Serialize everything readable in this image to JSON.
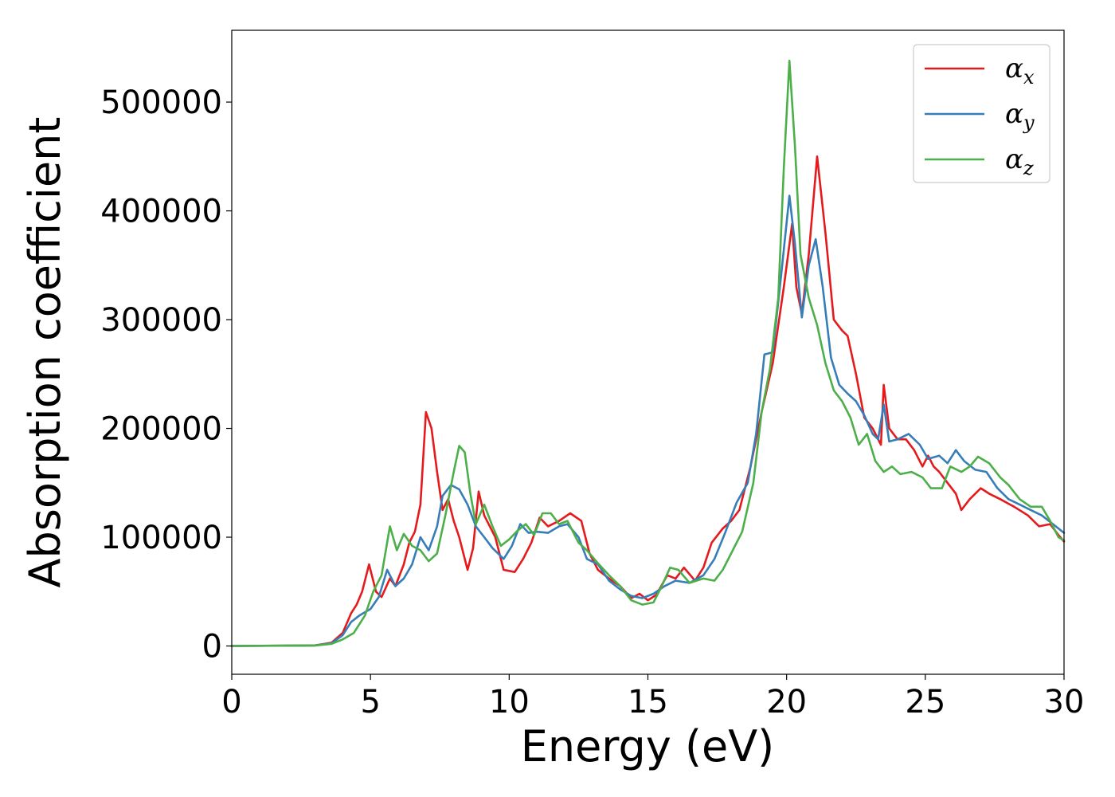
{
  "chart_data": {
    "type": "line",
    "title": "",
    "xlabel": "Energy (eV)",
    "ylabel": "Absorption coefficient",
    "xlim": [
      0,
      30
    ],
    "ylim": [
      -26000,
      566000
    ],
    "xticks": [
      0,
      5,
      10,
      15,
      20,
      25,
      30
    ],
    "xtick_labels": [
      "0",
      "5",
      "10",
      "15",
      "20",
      "25",
      "30"
    ],
    "yticks": [
      0,
      100000,
      200000,
      300000,
      400000,
      500000
    ],
    "ytick_labels": [
      "0",
      "100000",
      "200000",
      "300000",
      "400000",
      "500000"
    ],
    "grid": false,
    "legend_position": "top-right",
    "series": [
      {
        "name": "α_x",
        "label_main": "α",
        "label_sub": "x",
        "color": "#e41a1c",
        "points": [
          [
            0,
            0
          ],
          [
            3,
            500
          ],
          [
            3.6,
            3000
          ],
          [
            4.0,
            12000
          ],
          [
            4.3,
            30000
          ],
          [
            4.5,
            38000
          ],
          [
            4.7,
            50000
          ],
          [
            4.95,
            75000
          ],
          [
            5.2,
            50000
          ],
          [
            5.4,
            45000
          ],
          [
            5.7,
            62000
          ],
          [
            5.9,
            55000
          ],
          [
            6.2,
            75000
          ],
          [
            6.4,
            95000
          ],
          [
            6.6,
            105000
          ],
          [
            6.8,
            130000
          ],
          [
            7.0,
            215000
          ],
          [
            7.2,
            200000
          ],
          [
            7.4,
            160000
          ],
          [
            7.6,
            125000
          ],
          [
            7.8,
            135000
          ],
          [
            8.0,
            115000
          ],
          [
            8.2,
            100000
          ],
          [
            8.5,
            70000
          ],
          [
            8.7,
            90000
          ],
          [
            8.9,
            142000
          ],
          [
            9.1,
            120000
          ],
          [
            9.5,
            100000
          ],
          [
            9.8,
            70000
          ],
          [
            10.2,
            68000
          ],
          [
            10.5,
            80000
          ],
          [
            10.8,
            95000
          ],
          [
            11.1,
            118000
          ],
          [
            11.4,
            110000
          ],
          [
            11.8,
            115000
          ],
          [
            12.2,
            122000
          ],
          [
            12.6,
            115000
          ],
          [
            12.9,
            85000
          ],
          [
            13.2,
            70000
          ],
          [
            13.6,
            62000
          ],
          [
            14.0,
            55000
          ],
          [
            14.4,
            44000
          ],
          [
            14.7,
            48000
          ],
          [
            15.0,
            42000
          ],
          [
            15.3,
            47000
          ],
          [
            15.7,
            65000
          ],
          [
            16.0,
            62000
          ],
          [
            16.3,
            72000
          ],
          [
            16.7,
            60000
          ],
          [
            17.0,
            72000
          ],
          [
            17.3,
            95000
          ],
          [
            17.7,
            108000
          ],
          [
            18.0,
            115000
          ],
          [
            18.3,
            125000
          ],
          [
            18.7,
            165000
          ],
          [
            19.1,
            215000
          ],
          [
            19.5,
            260000
          ],
          [
            19.9,
            330000
          ],
          [
            20.2,
            388000
          ],
          [
            20.35,
            330000
          ],
          [
            20.55,
            305000
          ],
          [
            20.8,
            360000
          ],
          [
            21.1,
            450000
          ],
          [
            21.4,
            380000
          ],
          [
            21.7,
            300000
          ],
          [
            22.0,
            290000
          ],
          [
            22.2,
            285000
          ],
          [
            22.5,
            250000
          ],
          [
            22.8,
            210000
          ],
          [
            23.1,
            200000
          ],
          [
            23.4,
            185000
          ],
          [
            23.5,
            240000
          ],
          [
            23.7,
            200000
          ],
          [
            24.0,
            190000
          ],
          [
            24.3,
            190000
          ],
          [
            24.6,
            180000
          ],
          [
            24.9,
            165000
          ],
          [
            25.1,
            175000
          ],
          [
            25.3,
            165000
          ],
          [
            25.5,
            160000
          ],
          [
            25.8,
            150000
          ],
          [
            26.1,
            140000
          ],
          [
            26.3,
            125000
          ],
          [
            26.6,
            135000
          ],
          [
            27.0,
            145000
          ],
          [
            27.3,
            140000
          ],
          [
            27.7,
            135000
          ],
          [
            28.2,
            128000
          ],
          [
            28.7,
            120000
          ],
          [
            29.1,
            110000
          ],
          [
            29.5,
            112000
          ],
          [
            29.8,
            102000
          ],
          [
            30,
            96000
          ]
        ]
      },
      {
        "name": "α_y",
        "label_main": "α",
        "label_sub": "y",
        "color": "#377eb8",
        "points": [
          [
            0,
            0
          ],
          [
            3,
            500
          ],
          [
            3.6,
            2500
          ],
          [
            4.0,
            10000
          ],
          [
            4.3,
            22000
          ],
          [
            4.6,
            28000
          ],
          [
            5.0,
            34000
          ],
          [
            5.3,
            45000
          ],
          [
            5.6,
            70000
          ],
          [
            5.9,
            55000
          ],
          [
            6.2,
            62000
          ],
          [
            6.5,
            75000
          ],
          [
            6.8,
            100000
          ],
          [
            7.1,
            88000
          ],
          [
            7.4,
            110000
          ],
          [
            7.6,
            138000
          ],
          [
            7.9,
            148000
          ],
          [
            8.2,
            144000
          ],
          [
            8.5,
            130000
          ],
          [
            8.8,
            110000
          ],
          [
            9.1,
            100000
          ],
          [
            9.4,
            90000
          ],
          [
            9.8,
            80000
          ],
          [
            10.1,
            92000
          ],
          [
            10.4,
            112000
          ],
          [
            10.7,
            104000
          ],
          [
            11.0,
            105000
          ],
          [
            11.4,
            104000
          ],
          [
            11.8,
            110000
          ],
          [
            12.1,
            112000
          ],
          [
            12.5,
            100000
          ],
          [
            12.8,
            80000
          ],
          [
            13.2,
            75000
          ],
          [
            13.6,
            60000
          ],
          [
            14.0,
            52000
          ],
          [
            14.4,
            46000
          ],
          [
            14.8,
            44000
          ],
          [
            15.2,
            48000
          ],
          [
            15.6,
            55000
          ],
          [
            16.0,
            60000
          ],
          [
            16.5,
            58000
          ],
          [
            17.0,
            65000
          ],
          [
            17.4,
            80000
          ],
          [
            17.8,
            105000
          ],
          [
            18.2,
            132000
          ],
          [
            18.6,
            150000
          ],
          [
            18.9,
            195000
          ],
          [
            19.2,
            268000
          ],
          [
            19.5,
            270000
          ],
          [
            19.8,
            340000
          ],
          [
            20.1,
            414000
          ],
          [
            20.3,
            370000
          ],
          [
            20.55,
            302000
          ],
          [
            20.8,
            350000
          ],
          [
            21.05,
            374000
          ],
          [
            21.3,
            330000
          ],
          [
            21.6,
            265000
          ],
          [
            21.9,
            240000
          ],
          [
            22.2,
            232000
          ],
          [
            22.5,
            225000
          ],
          [
            22.8,
            212000
          ],
          [
            23.1,
            195000
          ],
          [
            23.3,
            190000
          ],
          [
            23.5,
            222000
          ],
          [
            23.7,
            188000
          ],
          [
            24.0,
            190000
          ],
          [
            24.4,
            195000
          ],
          [
            24.8,
            185000
          ],
          [
            25.1,
            172000
          ],
          [
            25.5,
            175000
          ],
          [
            25.8,
            168000
          ],
          [
            26.1,
            180000
          ],
          [
            26.4,
            170000
          ],
          [
            26.8,
            162000
          ],
          [
            27.2,
            160000
          ],
          [
            27.6,
            145000
          ],
          [
            28.0,
            135000
          ],
          [
            28.4,
            130000
          ],
          [
            28.8,
            125000
          ],
          [
            29.2,
            120000
          ],
          [
            29.6,
            112000
          ],
          [
            30,
            104000
          ]
        ]
      },
      {
        "name": "α_z",
        "label_main": "α",
        "label_sub": "z",
        "color": "#4daf4a",
        "points": [
          [
            0,
            0
          ],
          [
            3,
            400
          ],
          [
            3.6,
            2000
          ],
          [
            4.0,
            6000
          ],
          [
            4.4,
            12000
          ],
          [
            4.8,
            28000
          ],
          [
            5.1,
            50000
          ],
          [
            5.4,
            65000
          ],
          [
            5.7,
            110000
          ],
          [
            5.95,
            88000
          ],
          [
            6.2,
            103000
          ],
          [
            6.5,
            92000
          ],
          [
            6.8,
            88000
          ],
          [
            7.1,
            78000
          ],
          [
            7.4,
            85000
          ],
          [
            7.7,
            120000
          ],
          [
            8.0,
            160000
          ],
          [
            8.2,
            184000
          ],
          [
            8.4,
            178000
          ],
          [
            8.6,
            140000
          ],
          [
            8.8,
            112000
          ],
          [
            9.1,
            130000
          ],
          [
            9.4,
            110000
          ],
          [
            9.7,
            92000
          ],
          [
            10.0,
            98000
          ],
          [
            10.3,
            106000
          ],
          [
            10.6,
            112000
          ],
          [
            10.9,
            102000
          ],
          [
            11.2,
            122000
          ],
          [
            11.5,
            122000
          ],
          [
            11.8,
            112000
          ],
          [
            12.1,
            115000
          ],
          [
            12.5,
            95000
          ],
          [
            12.8,
            88000
          ],
          [
            13.2,
            76000
          ],
          [
            13.6,
            65000
          ],
          [
            14.0,
            55000
          ],
          [
            14.4,
            42000
          ],
          [
            14.8,
            38000
          ],
          [
            15.2,
            40000
          ],
          [
            15.5,
            55000
          ],
          [
            15.8,
            72000
          ],
          [
            16.1,
            70000
          ],
          [
            16.5,
            58000
          ],
          [
            17.0,
            62000
          ],
          [
            17.4,
            60000
          ],
          [
            17.7,
            70000
          ],
          [
            18.0,
            85000
          ],
          [
            18.4,
            105000
          ],
          [
            18.8,
            150000
          ],
          [
            19.1,
            215000
          ],
          [
            19.4,
            255000
          ],
          [
            19.7,
            320000
          ],
          [
            19.9,
            440000
          ],
          [
            20.1,
            538000
          ],
          [
            20.3,
            460000
          ],
          [
            20.5,
            360000
          ],
          [
            20.8,
            320000
          ],
          [
            21.1,
            295000
          ],
          [
            21.4,
            260000
          ],
          [
            21.7,
            235000
          ],
          [
            22.0,
            225000
          ],
          [
            22.3,
            210000
          ],
          [
            22.6,
            185000
          ],
          [
            22.9,
            195000
          ],
          [
            23.2,
            170000
          ],
          [
            23.5,
            160000
          ],
          [
            23.8,
            165000
          ],
          [
            24.1,
            158000
          ],
          [
            24.5,
            160000
          ],
          [
            24.9,
            155000
          ],
          [
            25.2,
            145000
          ],
          [
            25.6,
            145000
          ],
          [
            25.9,
            165000
          ],
          [
            26.3,
            160000
          ],
          [
            26.6,
            165000
          ],
          [
            26.9,
            174000
          ],
          [
            27.3,
            168000
          ],
          [
            27.7,
            155000
          ],
          [
            28.0,
            148000
          ],
          [
            28.4,
            135000
          ],
          [
            28.8,
            128000
          ],
          [
            29.2,
            128000
          ],
          [
            29.5,
            115000
          ],
          [
            29.8,
            100000
          ],
          [
            30,
            97000
          ]
        ]
      }
    ]
  }
}
